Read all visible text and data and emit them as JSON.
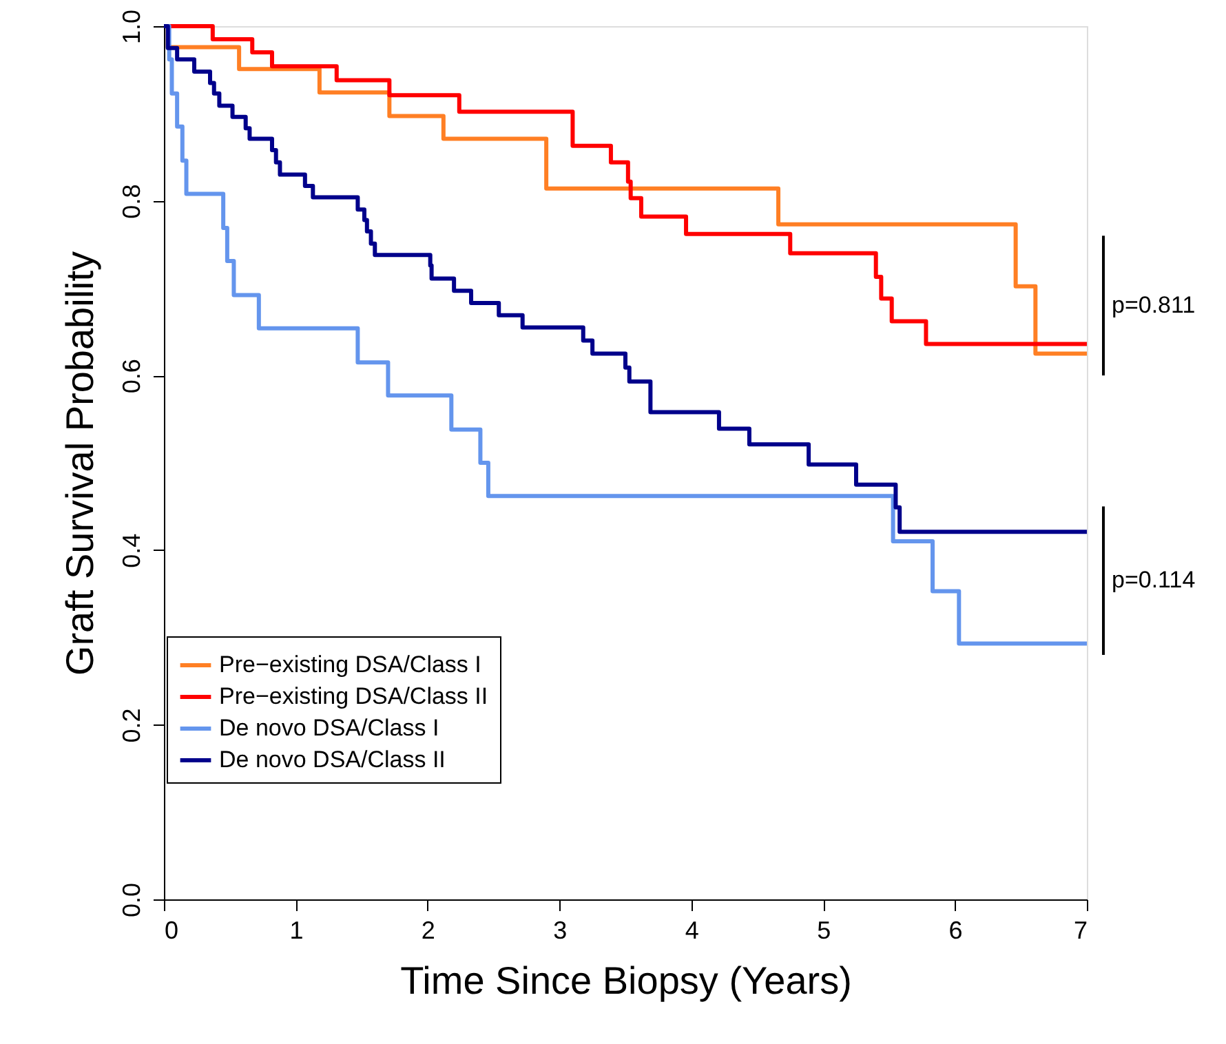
{
  "chart_data": {
    "type": "step",
    "xlabel": "Time Since Biopsy (Years)",
    "ylabel": "Graft Survival Probability",
    "xlim": [
      0,
      7
    ],
    "xticks": [
      0,
      1,
      2,
      3,
      4,
      5,
      6,
      7
    ],
    "ylim": [
      0,
      1
    ],
    "yticks": [
      {
        "value": 0,
        "label": "0.0"
      },
      {
        "value": 0.2,
        "label": "0.2"
      },
      {
        "value": 0.4,
        "label": "0.4"
      },
      {
        "value": 0.6,
        "label": "0.6"
      },
      {
        "value": 0.8,
        "label": "0.8"
      },
      {
        "value": 1,
        "label": "1.0"
      }
    ],
    "grid": false,
    "legend": "bottom left",
    "line_style": "solid",
    "marker": "none",
    "series": [
      {
        "name": "Pre−existing DSA/Class I",
        "color": "#ff7f24",
        "x": [
          0,
          0.03,
          0.57,
          1.18,
          1.71,
          2.12,
          2.9,
          4.66,
          6.46,
          6.61,
          7
        ],
        "values": [
          1,
          0.976,
          0.951,
          0.924,
          0.897,
          0.871,
          0.814,
          0.773,
          0.702,
          0.625,
          0.625
        ]
      },
      {
        "name": "Pre−existing DSA/Class II",
        "color": "#ff0000",
        "x": [
          0,
          0.37,
          0.67,
          0.82,
          1.31,
          1.71,
          2.24,
          3.1,
          3.39,
          3.52,
          3.54,
          3.62,
          3.96,
          4.75,
          5.4,
          5.44,
          5.52,
          5.78,
          7
        ],
        "values": [
          1,
          0.985,
          0.97,
          0.954,
          0.938,
          0.921,
          0.902,
          0.863,
          0.844,
          0.822,
          0.803,
          0.782,
          0.762,
          0.74,
          0.713,
          0.688,
          0.662,
          0.636,
          0.636
        ]
      },
      {
        "name": "De novo DSA/Class I",
        "color": "#6495ed",
        "x": [
          0,
          0.04,
          0.06,
          0.1,
          0.14,
          0.17,
          0.45,
          0.48,
          0.53,
          0.72,
          1.47,
          1.7,
          2.18,
          2.4,
          2.46,
          5.53,
          5.83,
          6.03,
          7
        ],
        "values": [
          1,
          0.962,
          0.923,
          0.885,
          0.846,
          0.808,
          0.769,
          0.731,
          0.692,
          0.654,
          0.615,
          0.577,
          0.538,
          0.5,
          0.462,
          0.41,
          0.353,
          0.293,
          0.293
        ]
      },
      {
        "name": "De novo DSA/Class II",
        "color": "#00008b",
        "x": [
          0,
          0.03,
          0.1,
          0.23,
          0.35,
          0.38,
          0.42,
          0.52,
          0.62,
          0.65,
          0.82,
          0.85,
          0.88,
          1.07,
          1.13,
          1.47,
          1.52,
          1.54,
          1.57,
          1.6,
          2.02,
          2.03,
          2.2,
          2.33,
          2.54,
          2.72,
          3.18,
          3.25,
          3.5,
          3.53,
          3.69,
          4.21,
          4.44,
          4.89,
          5.25,
          5.55,
          5.58,
          7
        ],
        "values": [
          1,
          0.975,
          0.962,
          0.948,
          0.935,
          0.923,
          0.909,
          0.896,
          0.883,
          0.871,
          0.858,
          0.844,
          0.83,
          0.817,
          0.804,
          0.79,
          0.778,
          0.765,
          0.751,
          0.738,
          0.726,
          0.711,
          0.697,
          0.683,
          0.669,
          0.655,
          0.64,
          0.625,
          0.609,
          0.593,
          0.558,
          0.539,
          0.521,
          0.498,
          0.475,
          0.449,
          0.421,
          0.421
        ]
      }
    ],
    "annotations": [
      "p=0.811",
      "p=0.114"
    ]
  }
}
